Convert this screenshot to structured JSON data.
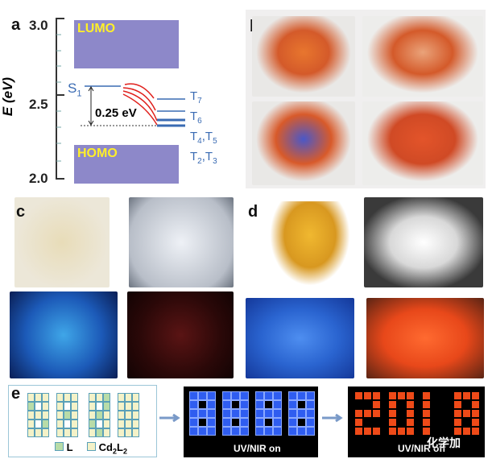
{
  "panel_a": {
    "label": "a",
    "yaxis_label": "E (eV)",
    "ticks": [
      "3.0",
      "2.5",
      "2.0"
    ],
    "lumo": "LUMO",
    "homo": "HOMO",
    "s1": "S",
    "s1_sub": "1",
    "gap": "0.25 eV",
    "triplets": [
      {
        "t": "T",
        "s": "7"
      },
      {
        "t": "T",
        "s": "6"
      },
      {
        "t": "T",
        "s": "4",
        "t2": ",T",
        "s2": "5"
      },
      {
        "t": "T",
        "s": "2",
        "t2": ",T",
        "s2": "3"
      }
    ]
  },
  "panel_b": {
    "label": "b"
  },
  "panel_c": {
    "label": "c"
  },
  "panel_d": {
    "label": "d"
  },
  "panel_e": {
    "label": "e",
    "legend_l": "L",
    "legend_cd": "Cd",
    "legend_cd_sub1": "2",
    "legend_cd_l": "L",
    "legend_cd_sub2": "2",
    "on_caption": "UV/NIR on",
    "off_caption": "UV/NIR off"
  },
  "watermark": "化学加",
  "colors": {
    "green": "#b8dca8",
    "cream": "#f4f2c8",
    "blue": "#2f5df0",
    "red": "#ef4a18",
    "gridline": "#5aa0b8"
  }
}
